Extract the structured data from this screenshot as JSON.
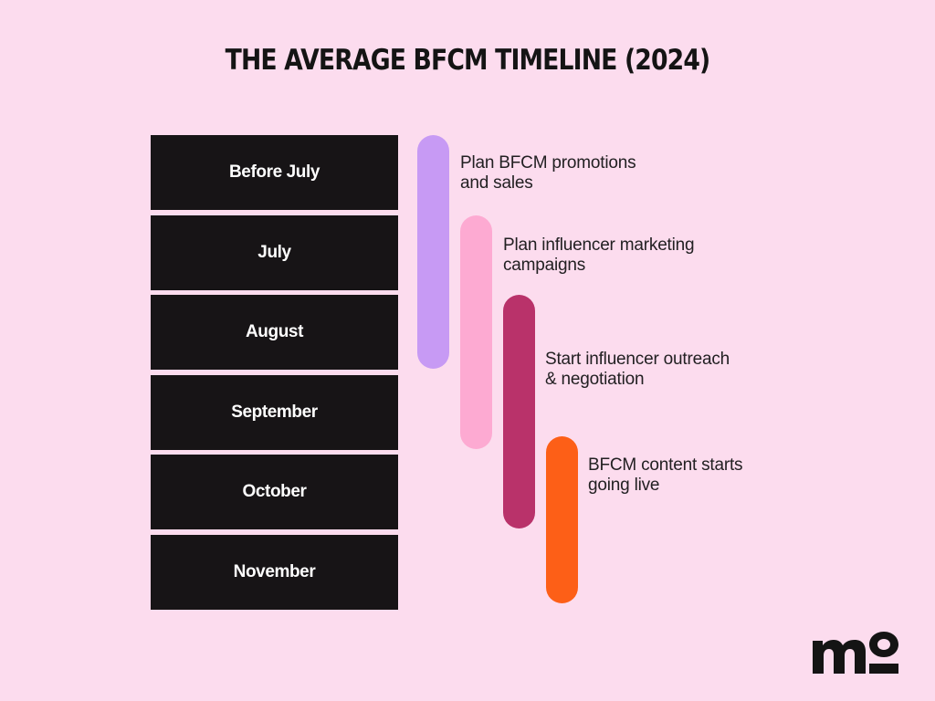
{
  "title": "THE AVERAGE BFCM TIMELINE (2024)",
  "months": [
    "Before July",
    "July",
    "August",
    "September",
    "October",
    "November"
  ],
  "steps": [
    {
      "line1": "Plan BFCM promotions",
      "line2": "and sales",
      "color": "#c79af4",
      "start_month": "Before July",
      "end_month": "August"
    },
    {
      "line1": "Plan influencer marketing",
      "line2": "campaigns",
      "color": "#fdaad2",
      "start_month": "July",
      "end_month": "September"
    },
    {
      "line1": "Start influencer outreach",
      "line2": "& negotiation",
      "color": "#b9326a",
      "start_month": "August",
      "end_month": "October"
    },
    {
      "line1": "BFCM content starts",
      "line2": "going live",
      "color": "#fd5f17",
      "start_month": "September",
      "end_month": "November"
    }
  ],
  "logo": {
    "icon": "mo-logo-icon",
    "color": "#141414"
  }
}
